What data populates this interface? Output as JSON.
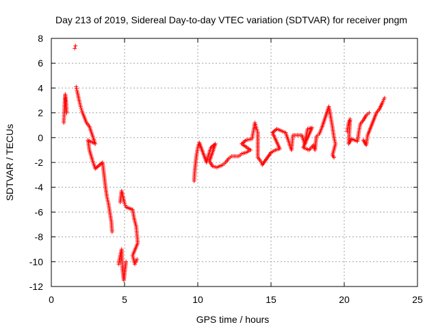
{
  "chart_data": {
    "type": "scatter",
    "title": "Day 213 of 2019, Sidereal Day-to-day VTEC variation (SDTVAR) for receiver pngm",
    "xlabel": "GPS time / hours",
    "ylabel": "SDTVAR / TECUs",
    "xlim": [
      0,
      25
    ],
    "ylim": [
      -12,
      8
    ],
    "xticks": [
      "0",
      "5",
      "10",
      "15",
      "20",
      "25"
    ],
    "yticks": [
      "8",
      "6",
      "4",
      "2",
      "0",
      "-2",
      "-4",
      "-6",
      "-8",
      "-10",
      "-12"
    ],
    "grid": true,
    "marker": "+",
    "color": "#ff0000",
    "segments": [
      [
        0.85,
        1.2
      ],
      [
        0.9,
        2.5
      ],
      [
        0.95,
        3.5
      ],
      [
        1.0,
        3.0
      ],
      [
        1.05,
        2.0
      ],
      [
        1.6,
        7.2
      ],
      [
        1.65,
        7.4
      ],
      [
        1.7,
        4.1
      ],
      [
        1.75,
        3.8
      ],
      [
        1.9,
        3.0
      ],
      [
        2.0,
        2.5
      ],
      [
        2.1,
        2.1
      ],
      [
        2.4,
        1.2
      ],
      [
        2.6,
        0.9
      ],
      [
        2.8,
        0.2
      ],
      [
        3.0,
        -0.5
      ],
      [
        2.5,
        -0.2
      ],
      [
        2.6,
        -1.0
      ],
      [
        2.8,
        -1.8
      ],
      [
        3.0,
        -2.5
      ],
      [
        3.5,
        -2.0
      ],
      [
        3.6,
        -3.0
      ],
      [
        3.7,
        -4.0
      ],
      [
        3.8,
        -4.8
      ],
      [
        3.9,
        -5.3
      ],
      [
        4.1,
        -6.8
      ],
      [
        4.15,
        -7.6
      ],
      [
        4.6,
        -10.2
      ],
      [
        4.7,
        -9.5
      ],
      [
        4.8,
        -9.0
      ],
      [
        4.85,
        -10.5
      ],
      [
        4.95,
        -11.5
      ],
      [
        5.1,
        -10.0
      ],
      [
        4.7,
        -5.2
      ],
      [
        4.8,
        -4.3
      ],
      [
        5.0,
        -5.3
      ],
      [
        5.1,
        -5.6
      ],
      [
        5.55,
        -5.8
      ],
      [
        5.65,
        -6.5
      ],
      [
        5.8,
        -7.2
      ],
      [
        5.9,
        -8.5
      ],
      [
        5.55,
        -9.5
      ],
      [
        5.7,
        -10.2
      ],
      [
        5.85,
        -9.8
      ],
      [
        9.75,
        -3.5
      ],
      [
        9.8,
        -2.6
      ],
      [
        9.9,
        -1.5
      ],
      [
        10.0,
        -0.8
      ],
      [
        10.1,
        -0.4
      ],
      [
        10.6,
        -2.0
      ],
      [
        10.7,
        -1.5
      ],
      [
        10.9,
        -0.8
      ],
      [
        11.2,
        -0.5
      ],
      [
        10.8,
        -1.9
      ],
      [
        11.0,
        -2.3
      ],
      [
        11.3,
        -2.4
      ],
      [
        11.7,
        -2.2
      ],
      [
        11.9,
        -2.0
      ],
      [
        12.1,
        -1.7
      ],
      [
        12.3,
        -1.5
      ],
      [
        12.8,
        -1.5
      ],
      [
        13.0,
        -1.3
      ],
      [
        13.3,
        -1.2
      ],
      [
        13.6,
        -1.0
      ],
      [
        13.0,
        -0.5
      ],
      [
        13.3,
        -0.2
      ],
      [
        13.7,
        -0.1
      ],
      [
        13.9,
        1.2
      ],
      [
        14.0,
        0.8
      ],
      [
        14.1,
        0.4
      ],
      [
        14.1,
        -1.6
      ],
      [
        14.3,
        -1.9
      ],
      [
        14.4,
        -2.2
      ],
      [
        15.0,
        -1.2
      ],
      [
        15.3,
        -1.0
      ],
      [
        15.6,
        -0.9
      ],
      [
        15.1,
        0.4
      ],
      [
        15.4,
        0.7
      ],
      [
        16.0,
        0.4
      ],
      [
        16.2,
        -0.3
      ],
      [
        16.4,
        -1.0
      ],
      [
        16.5,
        0.2
      ],
      [
        17.1,
        0.2
      ],
      [
        17.3,
        -0.5
      ],
      [
        17.5,
        0.7
      ],
      [
        17.8,
        0.8
      ],
      [
        17.2,
        -0.8
      ],
      [
        17.6,
        -1.0
      ],
      [
        17.9,
        -0.6
      ],
      [
        18.0,
        -1.0
      ],
      [
        18.1,
        0.1
      ],
      [
        18.3,
        0.3
      ],
      [
        18.5,
        0.9
      ],
      [
        18.95,
        2.5
      ],
      [
        19.1,
        1.5
      ],
      [
        19.2,
        0.8
      ],
      [
        19.3,
        0.0
      ],
      [
        19.4,
        -0.5
      ],
      [
        19.2,
        -1.4
      ],
      [
        19.3,
        -1.6
      ],
      [
        20.2,
        0.5
      ],
      [
        20.3,
        1.2
      ],
      [
        20.4,
        1.5
      ],
      [
        20.3,
        -0.5
      ],
      [
        20.5,
        -0.1
      ],
      [
        20.9,
        -0.3
      ],
      [
        21.0,
        0.5
      ],
      [
        21.1,
        1.1
      ],
      [
        21.3,
        1.4
      ],
      [
        21.5,
        1.8
      ],
      [
        21.7,
        2.0
      ],
      [
        21.3,
        -0.2
      ],
      [
        21.5,
        -0.6
      ],
      [
        21.6,
        0.2
      ],
      [
        22.2,
        2.0
      ],
      [
        22.4,
        2.3
      ],
      [
        22.6,
        2.8
      ],
      [
        22.75,
        3.2
      ]
    ]
  }
}
